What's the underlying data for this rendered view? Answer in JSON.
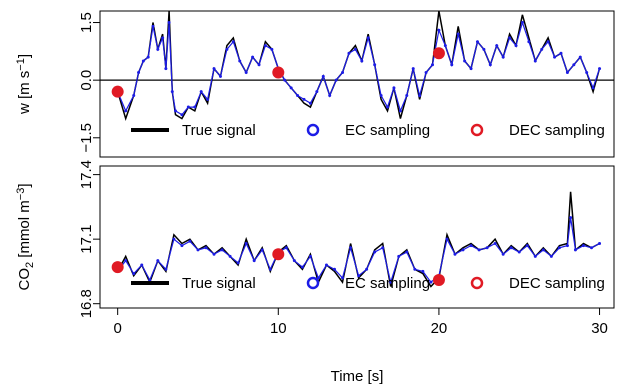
{
  "chart_data": [
    {
      "type": "line",
      "panel": "top",
      "ylabel": {
        "base": "w [m s",
        "sup": "−1",
        "end": "]"
      },
      "ylim": [
        -2.0,
        1.8
      ],
      "yticks": [
        -1.5,
        0.0,
        1.5
      ],
      "yticklabels": [
        "−1.5",
        "0.0",
        "1.5"
      ],
      "xlim": [
        -1.1,
        30.9
      ],
      "reference_line_y": 0,
      "legend": {
        "placement": "bottom",
        "items": [
          {
            "label": "True signal",
            "marker": "line",
            "color": "#000000"
          },
          {
            "label": "EC sampling",
            "marker": "circle",
            "color": "#1c1ce6"
          },
          {
            "label": "DEC sampling",
            "marker": "circle",
            "color": "#e01a24"
          }
        ]
      },
      "series": [
        {
          "name": "True signal",
          "color": "#000000",
          "x": [
            0,
            0.5,
            1,
            1.3,
            1.6,
            1.9,
            2.2,
            2.5,
            2.8,
            3.0,
            3.2,
            3.4,
            3.6,
            4.0,
            4.4,
            4.8,
            5.2,
            5.6,
            6.0,
            6.4,
            6.8,
            7.2,
            7.6,
            8.0,
            8.4,
            8.8,
            9.2,
            9.6,
            10.0,
            10.4,
            10.8,
            11.2,
            11.6,
            12.0,
            12.4,
            12.8,
            13.2,
            13.6,
            14.0,
            14.4,
            14.8,
            15.2,
            15.6,
            16.0,
            16.4,
            16.8,
            17.2,
            17.6,
            18.0,
            18.4,
            18.8,
            19.2,
            19.6,
            20.0,
            20.4,
            20.8,
            21.2,
            21.6,
            22.0,
            22.4,
            22.8,
            23.2,
            23.6,
            24.0,
            24.4,
            24.8,
            25.2,
            25.6,
            26.0,
            26.4,
            26.8,
            27.2,
            27.6,
            28.0,
            28.4,
            28.8,
            29.2,
            29.6,
            30.0
          ],
          "y": [
            -0.3,
            -1.0,
            -0.4,
            0.2,
            0.5,
            0.6,
            1.5,
            0.8,
            1.2,
            0.3,
            1.8,
            -0.3,
            -0.9,
            -1.0,
            -0.7,
            -0.8,
            -0.3,
            -0.6,
            0.3,
            0.1,
            0.9,
            1.1,
            0.5,
            0.2,
            0.6,
            0.4,
            1.0,
            0.8,
            0.3,
            0.0,
            -0.2,
            -0.4,
            -0.6,
            -0.7,
            -0.3,
            0.1,
            -0.4,
            0.0,
            0.2,
            0.7,
            0.9,
            0.5,
            1.2,
            0.4,
            -0.5,
            -0.8,
            -0.2,
            -1.0,
            -0.4,
            0.3,
            -0.5,
            0.2,
            0.4,
            1.8,
            0.9,
            0.4,
            1.4,
            0.5,
            0.3,
            1.0,
            0.8,
            0.4,
            0.9,
            0.6,
            1.2,
            0.9,
            1.7,
            1.1,
            0.5,
            0.8,
            1.1,
            0.6,
            0.7,
            0.2,
            0.4,
            0.6,
            0.2,
            -0.3,
            0.3
          ]
        },
        {
          "name": "EC sampling",
          "color": "#1c1ce6",
          "x": [
            0,
            0.5,
            1,
            1.3,
            1.6,
            1.9,
            2.2,
            2.5,
            2.8,
            3.0,
            3.2,
            3.4,
            3.6,
            4.0,
            4.4,
            4.8,
            5.2,
            5.6,
            6.0,
            6.4,
            6.8,
            7.2,
            7.6,
            8.0,
            8.4,
            8.8,
            9.2,
            9.6,
            10.0,
            10.4,
            10.8,
            11.2,
            11.6,
            12.0,
            12.4,
            12.8,
            13.2,
            13.6,
            14.0,
            14.4,
            14.8,
            15.2,
            15.6,
            16.0,
            16.4,
            16.8,
            17.2,
            17.6,
            18.0,
            18.4,
            18.8,
            19.2,
            19.6,
            20.0,
            20.4,
            20.8,
            21.2,
            21.6,
            22.0,
            22.4,
            22.8,
            23.2,
            23.6,
            24.0,
            24.4,
            24.8,
            25.2,
            25.6,
            26.0,
            26.4,
            26.8,
            27.2,
            27.6,
            28.0,
            28.4,
            28.8,
            29.2,
            29.6,
            30.0
          ],
          "y": [
            -0.3,
            -0.8,
            -0.4,
            0.2,
            0.5,
            0.6,
            1.4,
            0.8,
            1.1,
            0.3,
            1.5,
            -0.3,
            -0.8,
            -0.9,
            -0.7,
            -0.7,
            -0.3,
            -0.5,
            0.3,
            0.1,
            0.8,
            1.0,
            0.5,
            0.2,
            0.6,
            0.4,
            0.9,
            0.8,
            0.3,
            0.0,
            -0.2,
            -0.4,
            -0.5,
            -0.6,
            -0.3,
            0.1,
            -0.4,
            0.0,
            0.2,
            0.7,
            0.8,
            0.5,
            1.1,
            0.4,
            -0.4,
            -0.7,
            -0.2,
            -0.8,
            -0.4,
            0.3,
            -0.4,
            0.2,
            0.4,
            1.3,
            0.9,
            0.4,
            1.2,
            0.5,
            0.3,
            1.0,
            0.8,
            0.4,
            0.9,
            0.6,
            1.1,
            0.9,
            1.5,
            1.0,
            0.5,
            0.8,
            1.0,
            0.6,
            0.7,
            0.2,
            0.4,
            0.6,
            0.2,
            -0.2,
            0.3
          ]
        },
        {
          "name": "DEC sampling",
          "color": "#e01a24",
          "marker_only": true,
          "x": [
            0,
            10,
            20
          ],
          "y": [
            -0.3,
            0.2,
            0.7
          ]
        }
      ]
    },
    {
      "type": "line",
      "panel": "bottom",
      "ylabel": {
        "base": "CO",
        "sub": "2",
        "mid": " [mmol m",
        "sup": "−3",
        "end": "]"
      },
      "ylim": [
        16.78,
        17.44
      ],
      "yticks": [
        16.8,
        17.1,
        17.4
      ],
      "yticklabels": [
        "16.8",
        "17.1",
        "17.4"
      ],
      "xlim": [
        -1.1,
        30.9
      ],
      "xticks": [
        0,
        10,
        20,
        30
      ],
      "xticklabels": [
        "0",
        "10",
        "20",
        "30"
      ],
      "xlabel": "Time [s]",
      "legend": {
        "placement": "bottom",
        "items": [
          {
            "label": "True signal",
            "marker": "line",
            "color": "#000000"
          },
          {
            "label": "EC sampling",
            "marker": "circle",
            "color": "#1c1ce6"
          },
          {
            "label": "DEC sampling",
            "marker": "circle",
            "color": "#e01a24"
          }
        ]
      },
      "series": [
        {
          "name": "True signal",
          "color": "#000000",
          "x": [
            0,
            0.5,
            1,
            1.5,
            2,
            2.5,
            3,
            3.5,
            4,
            4.5,
            5,
            5.5,
            6,
            6.5,
            7,
            7.5,
            8,
            8.5,
            9,
            9.5,
            10,
            10.5,
            11,
            11.5,
            12,
            12.5,
            13,
            13.5,
            14,
            14.5,
            15,
            15.5,
            16,
            16.5,
            17,
            17.5,
            18,
            18.5,
            19,
            19.5,
            20,
            20.5,
            21,
            21.5,
            22,
            22.5,
            23,
            23.5,
            24,
            24.5,
            25,
            25.5,
            26,
            26.5,
            27,
            27.5,
            28,
            28.2,
            28.5,
            29,
            29.5,
            30
          ],
          "y": [
            16.95,
            17.02,
            16.93,
            16.98,
            16.9,
            17.0,
            16.95,
            17.12,
            17.08,
            17.1,
            17.05,
            17.07,
            17.03,
            17.06,
            17.02,
            16.98,
            17.1,
            17.0,
            17.06,
            16.95,
            17.04,
            17.07,
            17.0,
            16.96,
            17.03,
            16.9,
            16.98,
            16.95,
            16.9,
            17.08,
            16.92,
            16.96,
            17.05,
            17.08,
            16.88,
            17.02,
            17.05,
            16.96,
            16.94,
            16.88,
            16.92,
            17.12,
            17.03,
            17.06,
            17.08,
            17.05,
            17.06,
            17.1,
            17.03,
            17.07,
            17.04,
            17.08,
            17.02,
            17.06,
            17.02,
            17.07,
            17.08,
            17.32,
            17.05,
            17.08,
            17.06,
            17.08
          ]
        },
        {
          "name": "EC sampling",
          "color": "#1c1ce6",
          "x": [
            0,
            0.5,
            1,
            1.5,
            2,
            2.5,
            3,
            3.5,
            4,
            4.5,
            5,
            5.5,
            6,
            6.5,
            7,
            7.5,
            8,
            8.5,
            9,
            9.5,
            10,
            10.5,
            11,
            11.5,
            12,
            12.5,
            13,
            13.5,
            14,
            14.5,
            15,
            15.5,
            16,
            16.5,
            17,
            17.5,
            18,
            18.5,
            19,
            19.5,
            20,
            20.5,
            21,
            21.5,
            22,
            22.5,
            23,
            23.5,
            24,
            24.5,
            25,
            25.5,
            26,
            26.5,
            27,
            27.5,
            28,
            28.2,
            28.5,
            29,
            29.5,
            30
          ],
          "y": [
            16.95,
            17.0,
            16.94,
            16.98,
            16.91,
            17.0,
            16.96,
            17.1,
            17.07,
            17.09,
            17.05,
            17.06,
            17.03,
            17.05,
            17.02,
            16.99,
            17.08,
            17.0,
            17.05,
            16.96,
            17.04,
            17.06,
            17.0,
            16.97,
            17.02,
            16.92,
            16.98,
            16.96,
            16.92,
            17.06,
            16.93,
            16.96,
            17.04,
            17.06,
            16.9,
            17.02,
            17.04,
            16.96,
            16.95,
            16.9,
            16.93,
            17.1,
            17.03,
            17.05,
            17.07,
            17.05,
            17.06,
            17.08,
            17.03,
            17.06,
            17.04,
            17.07,
            17.02,
            17.05,
            17.02,
            17.06,
            17.07,
            17.2,
            17.05,
            17.07,
            17.06,
            17.08
          ]
        },
        {
          "name": "DEC sampling",
          "color": "#e01a24",
          "marker_only": true,
          "x": [
            0,
            10,
            20
          ],
          "y": [
            16.97,
            17.03,
            16.91
          ]
        }
      ]
    }
  ]
}
